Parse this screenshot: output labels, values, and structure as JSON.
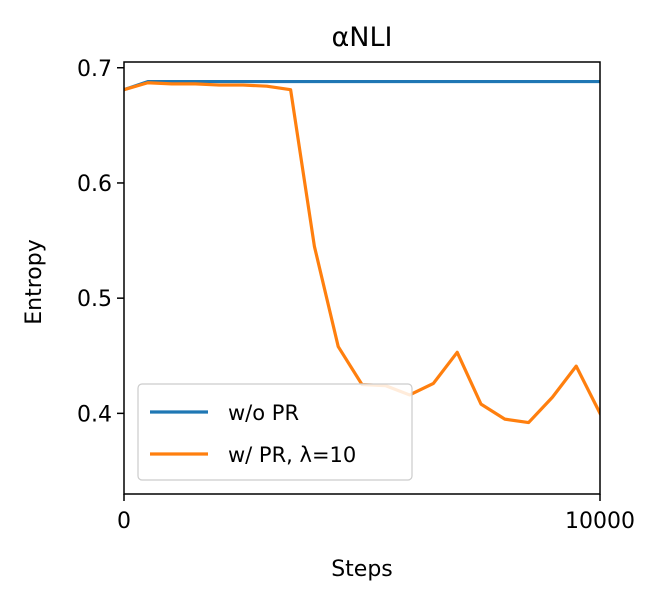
{
  "chart_data": {
    "type": "line",
    "title": "αNLI",
    "xlabel": "Steps",
    "ylabel": "Entropy",
    "xlim": [
      0,
      10000
    ],
    "ylim": [
      0.33,
      0.705
    ],
    "xticks": [
      0,
      10000
    ],
    "xtick_labels": [
      "0",
      "10000"
    ],
    "yticks": [
      0.4,
      0.5,
      0.6,
      0.7
    ],
    "ytick_labels": [
      "0.4",
      "0.5",
      "0.6",
      "0.7"
    ],
    "grid": false,
    "legend_position": "lower-left",
    "series": [
      {
        "name": "w/o PR",
        "color": "#1f77b4",
        "x": [
          0,
          500,
          1000,
          1500,
          2000,
          2500,
          3000,
          3500,
          4000,
          4500,
          5000,
          5500,
          6000,
          6500,
          7000,
          7500,
          8000,
          8500,
          9000,
          9500,
          10000
        ],
        "y": [
          0.681,
          0.688,
          0.688,
          0.688,
          0.688,
          0.688,
          0.688,
          0.688,
          0.688,
          0.688,
          0.688,
          0.688,
          0.688,
          0.688,
          0.688,
          0.688,
          0.688,
          0.688,
          0.688,
          0.688,
          0.688
        ]
      },
      {
        "name": "w/ PR, λ=10",
        "color": "#ff7f0e",
        "x": [
          0,
          500,
          1000,
          1500,
          2000,
          2500,
          3000,
          3500,
          4000,
          4500,
          5000,
          5500,
          6000,
          6500,
          7000,
          7500,
          8000,
          8500,
          9000,
          9500,
          10000
        ],
        "y": [
          0.681,
          0.687,
          0.686,
          0.686,
          0.685,
          0.685,
          0.684,
          0.681,
          0.545,
          0.458,
          0.425,
          0.424,
          0.416,
          0.426,
          0.453,
          0.408,
          0.395,
          0.392,
          0.414,
          0.441,
          0.4
        ]
      }
    ]
  }
}
